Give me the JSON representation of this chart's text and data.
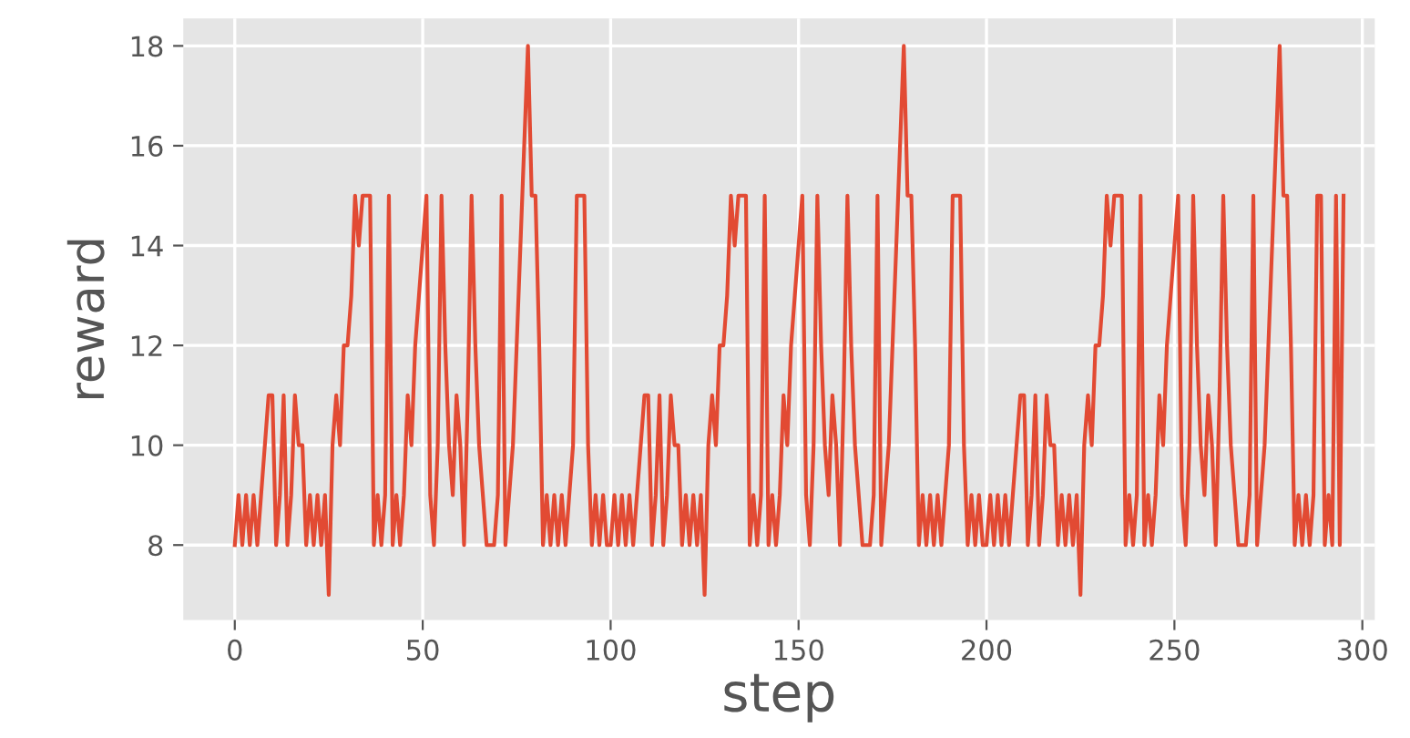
{
  "chart_data": {
    "type": "line",
    "xlabel": "step",
    "ylabel": "reward",
    "x": [
      0,
      1,
      2,
      3,
      4,
      5,
      6,
      7,
      8,
      9,
      10,
      11,
      12,
      13,
      14,
      15,
      16,
      17,
      18,
      19,
      20,
      21,
      22,
      23,
      24,
      25,
      26,
      27,
      28,
      29,
      30,
      31,
      32,
      33,
      34,
      35,
      36,
      37,
      38,
      39,
      40,
      41,
      42,
      43,
      44,
      45,
      46,
      47,
      48,
      49,
      50,
      51,
      52,
      53,
      54,
      55,
      56,
      57,
      58,
      59,
      60,
      61,
      62,
      63,
      64,
      65,
      66,
      67,
      68,
      69,
      70,
      71,
      72,
      73,
      74,
      75,
      76,
      77,
      78,
      79,
      80,
      81,
      82,
      83,
      84,
      85,
      86,
      87,
      88,
      89,
      90,
      91,
      92,
      93,
      94,
      95,
      96,
      97,
      98,
      99,
      100,
      101,
      102,
      103,
      104,
      105,
      106,
      107,
      108,
      109,
      110,
      111,
      112,
      113,
      114,
      115,
      116,
      117,
      118,
      119,
      120,
      121,
      122,
      123,
      124,
      125,
      126,
      127,
      128,
      129,
      130,
      131,
      132,
      133,
      134,
      135,
      136,
      137,
      138,
      139,
      140,
      141,
      142,
      143,
      144,
      145,
      146,
      147,
      148,
      149,
      150,
      151,
      152,
      153,
      154,
      155,
      156,
      157,
      158,
      159,
      160,
      161,
      162,
      163,
      164,
      165,
      166,
      167,
      168,
      169,
      170,
      171,
      172,
      173,
      174,
      175,
      176,
      177,
      178,
      179,
      180,
      181,
      182,
      183,
      184,
      185,
      186,
      187,
      188,
      189,
      190,
      191,
      192,
      193,
      194,
      195,
      196,
      197,
      198,
      199,
      200,
      201,
      202,
      203,
      204,
      205,
      206,
      207,
      208,
      209,
      210,
      211,
      212,
      213,
      214,
      215,
      216,
      217,
      218,
      219,
      220,
      221,
      222,
      223,
      224,
      225,
      226,
      227,
      228,
      229,
      230,
      231,
      232,
      233,
      234,
      235,
      236,
      237,
      238,
      239,
      240,
      241,
      242,
      243,
      244,
      245,
      246,
      247,
      248,
      249,
      250,
      251,
      252,
      253,
      254,
      255,
      256,
      257,
      258,
      259,
      260,
      261,
      262,
      263,
      264,
      265,
      266,
      267,
      268,
      269,
      270,
      271,
      272,
      273,
      274,
      275,
      276,
      277,
      278,
      279,
      280,
      281,
      282,
      283,
      284,
      285,
      286,
      287,
      288,
      289,
      290,
      291,
      292,
      293,
      294,
      295
    ],
    "series": [
      {
        "color": "#e24a33",
        "values": [
          8,
          9,
          8,
          9,
          8,
          9,
          8,
          9,
          10,
          11,
          11,
          8,
          9,
          11,
          8,
          9,
          11,
          10,
          10,
          8,
          9,
          8,
          9,
          8,
          9,
          7,
          10,
          11,
          10,
          12,
          12,
          13,
          15,
          14,
          15,
          15,
          15,
          8,
          9,
          8,
          9,
          15,
          8,
          9,
          8,
          9,
          11,
          10,
          12,
          13,
          14,
          15,
          9,
          8,
          10,
          15,
          12,
          10,
          9,
          11,
          10,
          8,
          11,
          15,
          12,
          10,
          9,
          8,
          8,
          8,
          9,
          15,
          8,
          9,
          10,
          12,
          14,
          16,
          18,
          15,
          15,
          12,
          8,
          9,
          8,
          9,
          8,
          9,
          8,
          9,
          10,
          15,
          15,
          15,
          10,
          8,
          9,
          8,
          9,
          8,
          8,
          9,
          8,
          9,
          8,
          9,
          8,
          9,
          10,
          11,
          11,
          8,
          9,
          11,
          8,
          9,
          11,
          10,
          10,
          8,
          9,
          8,
          9,
          8,
          9,
          7,
          10,
          11,
          10,
          12,
          12,
          13,
          15,
          14,
          15,
          15,
          15,
          8,
          9,
          8,
          9,
          15,
          8,
          9,
          8,
          9,
          11,
          10,
          12,
          13,
          14,
          15,
          9,
          8,
          10,
          15,
          12,
          10,
          9,
          11,
          10,
          8,
          11,
          15,
          12,
          10,
          9,
          8,
          8,
          8,
          9,
          15,
          8,
          9,
          10,
          12,
          14,
          16,
          18,
          15,
          15,
          12,
          8,
          9,
          8,
          9,
          8,
          9,
          8,
          9,
          10,
          15,
          15,
          15,
          10,
          8,
          9,
          8,
          9,
          8,
          8,
          9,
          8,
          9,
          8,
          9,
          8,
          9,
          10,
          11,
          11,
          8,
          9,
          11,
          8,
          9,
          11,
          10,
          10,
          8,
          9,
          8,
          9,
          8,
          9,
          7,
          10,
          11,
          10,
          12,
          12,
          13,
          15,
          14,
          15,
          15,
          15,
          8,
          9,
          8,
          9,
          15,
          8,
          9,
          8,
          9,
          11,
          10,
          12,
          13,
          14,
          15,
          9,
          8,
          10,
          15,
          12,
          10,
          9,
          11,
          10,
          8,
          11,
          15,
          12,
          10,
          9,
          8,
          8,
          8,
          9,
          15,
          8,
          9,
          10,
          12,
          14,
          16,
          18,
          15,
          15,
          12,
          8,
          9,
          8,
          9,
          8,
          9,
          15,
          15,
          8,
          9,
          8,
          15,
          8,
          15
        ]
      }
    ],
    "xlim": [
      -13.7,
      303.3
    ],
    "ylim": [
      6.5,
      18.55
    ],
    "xticks": [
      0,
      50,
      100,
      150,
      200,
      250,
      300
    ],
    "yticks": [
      8,
      10,
      12,
      14,
      16,
      18
    ],
    "grid": true,
    "marker": "none",
    "line_style": "solid"
  }
}
